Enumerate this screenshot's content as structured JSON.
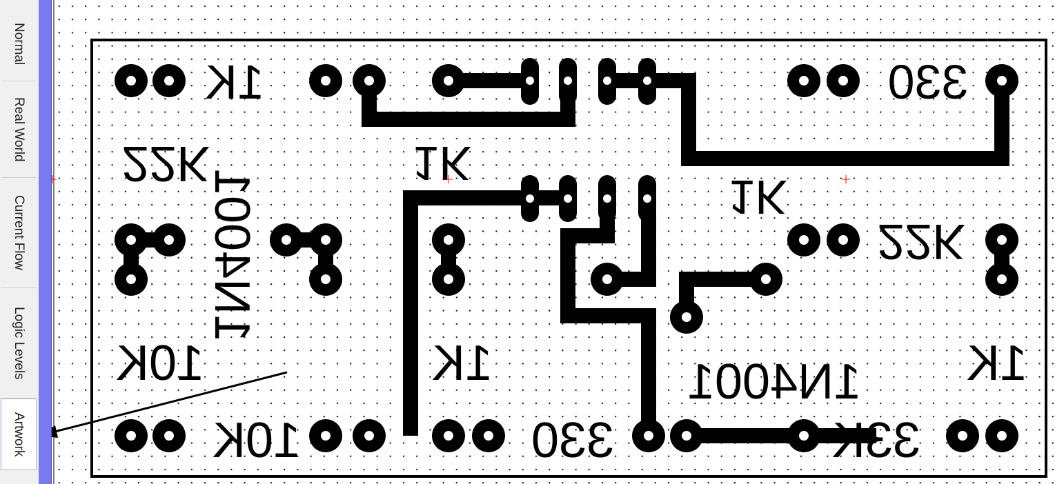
{
  "view_tabs": [
    {
      "label": "Normal",
      "active": false
    },
    {
      "label": "Real World",
      "active": false
    },
    {
      "label": "Current Flow",
      "active": false
    },
    {
      "label": "Logic Levels",
      "active": false
    },
    {
      "label": "Artwork",
      "active": true
    }
  ],
  "artwork": {
    "component_labels": [
      {
        "id": "r1-top-left",
        "text": "1K"
      },
      {
        "id": "r2-top-right",
        "text": "330"
      },
      {
        "id": "r3-left",
        "text": "22K"
      },
      {
        "id": "d1-vertical",
        "text": "1N4001"
      },
      {
        "id": "r4-center",
        "text": "1K"
      },
      {
        "id": "r5-right",
        "text": "1K"
      },
      {
        "id": "r6-right",
        "text": "22K"
      },
      {
        "id": "r7-left",
        "text": "10K"
      },
      {
        "id": "r8-center",
        "text": "1K"
      },
      {
        "id": "d2-horizontal",
        "text": "1N4001"
      },
      {
        "id": "r9-right",
        "text": "1K"
      },
      {
        "id": "r10-bottom-left",
        "text": "10K"
      },
      {
        "id": "r11-bottom-center",
        "text": "330"
      },
      {
        "id": "r12-bottom-right",
        "text": "33K"
      }
    ]
  },
  "colors": {
    "splitter": "#7a7af0",
    "copper": "#000000",
    "grid_dot": "#000000",
    "marker": "#ff0000"
  }
}
